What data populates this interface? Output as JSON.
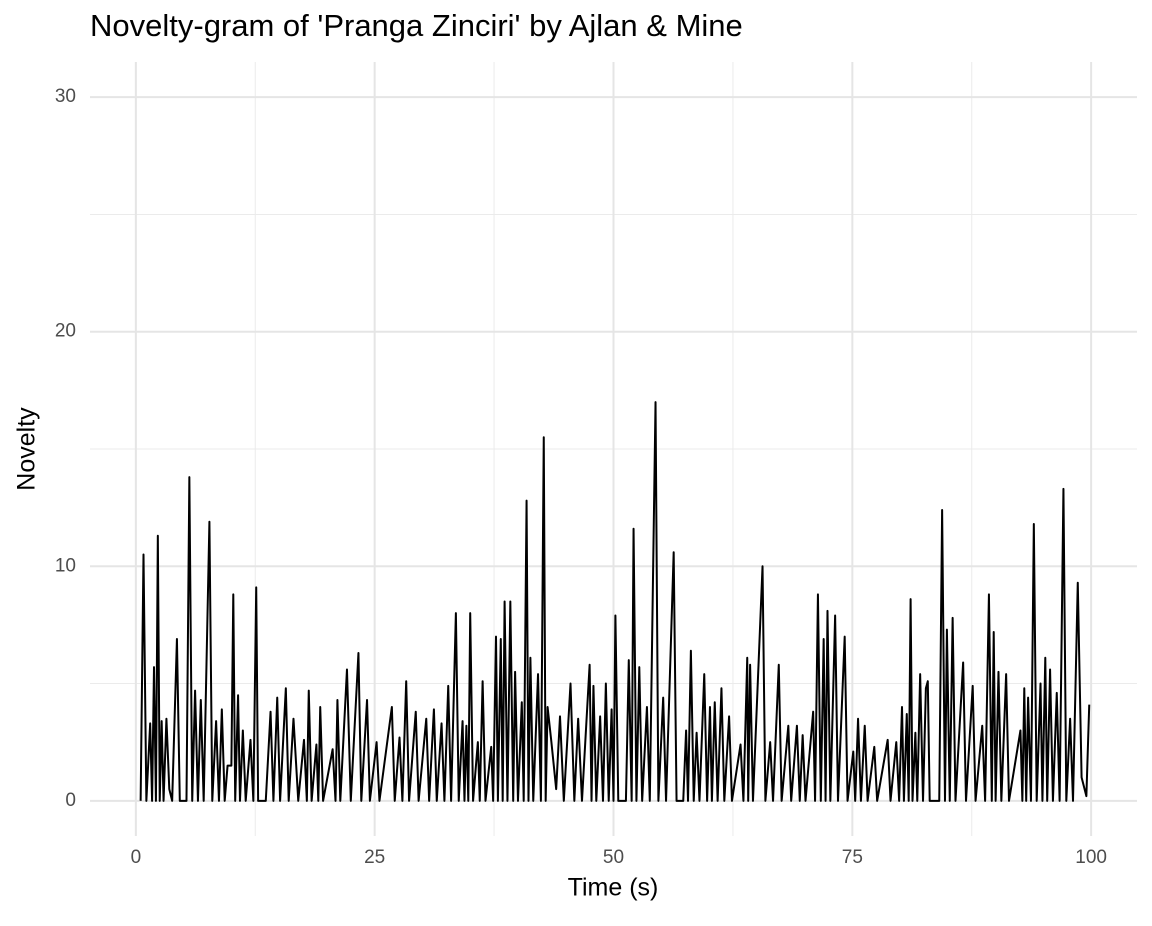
{
  "chart_data": {
    "type": "line",
    "title": "Novelty-gram of 'Pranga Zinciri' by Ajlan & Mine",
    "x_label": "Time (s)",
    "y_label": "Novelty",
    "xlim": [
      -4.8,
      104.8
    ],
    "ylim": [
      -1.5,
      31.5
    ],
    "xticks": [
      0,
      25,
      50,
      75,
      100
    ],
    "yticks": [
      0,
      10,
      20,
      30
    ],
    "x_minor_ticks": [
      12.5,
      37.5,
      62.5,
      87.5
    ],
    "y_minor_ticks": [
      5,
      15,
      25
    ],
    "grid": true,
    "series": [
      {
        "name": "Novelty",
        "color": "#000000",
        "x": [
          0.5,
          0.8,
          1.1,
          1.5,
          1.7,
          1.9,
          2.1,
          2.3,
          2.5,
          2.7,
          2.9,
          3.2,
          3.5,
          3.8,
          4.3,
          4.6,
          5.3,
          5.6,
          5.9,
          6.2,
          6.5,
          6.8,
          7.1,
          7.7,
          8.0,
          8.4,
          8.7,
          9.0,
          9.3,
          9.6,
          10.0,
          10.2,
          10.4,
          10.7,
          10.9,
          11.2,
          11.5,
          12.0,
          12.3,
          12.6,
          12.8,
          13.6,
          14.1,
          14.4,
          14.8,
          15.1,
          15.7,
          16.0,
          16.5,
          17.0,
          17.6,
          17.9,
          18.1,
          18.4,
          18.9,
          19.1,
          19.3,
          19.6,
          20.6,
          20.9,
          21.1,
          21.4,
          22.1,
          22.5,
          23.3,
          23.6,
          24.2,
          24.5,
          25.2,
          25.5,
          26.8,
          27.1,
          27.6,
          27.9,
          28.3,
          28.6,
          29.3,
          29.6,
          30.4,
          30.7,
          31.2,
          31.5,
          32.0,
          32.3,
          32.7,
          33.0,
          33.5,
          33.8,
          34.2,
          34.4,
          34.6,
          34.8,
          35.0,
          35.3,
          35.8,
          36.0,
          36.3,
          36.6,
          37.2,
          37.4,
          37.7,
          37.9,
          38.2,
          38.4,
          38.6,
          38.9,
          39.2,
          39.5,
          39.7,
          40.0,
          40.4,
          40.6,
          40.9,
          41.1,
          41.3,
          41.6,
          42.1,
          42.4,
          42.7,
          42.9,
          43.1,
          43.5,
          44.0,
          44.4,
          44.8,
          45.5,
          45.9,
          46.3,
          46.7,
          47.5,
          47.7,
          47.9,
          48.2,
          48.6,
          48.9,
          49.2,
          49.5,
          49.8,
          50.0,
          50.2,
          50.5,
          51.3,
          51.6,
          51.9,
          52.1,
          52.4,
          52.7,
          53.0,
          53.5,
          53.8,
          54.4,
          54.7,
          55.2,
          55.5,
          56.3,
          56.6,
          57.3,
          57.6,
          57.8,
          58.1,
          58.4,
          58.7,
          59.0,
          59.5,
          59.8,
          60.1,
          60.3,
          60.6,
          60.9,
          61.3,
          61.6,
          62.1,
          62.4,
          63.3,
          63.6,
          64.0,
          64.1,
          64.3,
          64.6,
          65.6,
          65.9,
          66.4,
          66.7,
          67.3,
          67.6,
          68.3,
          68.6,
          69.2,
          69.5,
          69.8,
          70.1,
          70.9,
          71.1,
          71.4,
          71.7,
          72.0,
          72.2,
          72.4,
          72.7,
          73.2,
          73.5,
          74.2,
          74.5,
          75.1,
          75.3,
          75.6,
          75.9,
          76.3,
          76.6,
          77.3,
          77.6,
          78.7,
          79.0,
          79.6,
          79.9,
          80.2,
          80.4,
          80.7,
          80.9,
          81.1,
          81.3,
          81.6,
          81.8,
          82.1,
          82.4,
          82.7,
          82.9,
          83.1,
          84.1,
          84.4,
          84.7,
          84.9,
          85.2,
          85.5,
          85.8,
          86.6,
          86.9,
          87.6,
          87.9,
          88.6,
          88.9,
          89.3,
          89.6,
          89.8,
          90.0,
          90.3,
          90.6,
          91.1,
          91.4,
          92.6,
          92.8,
          93.0,
          93.2,
          93.4,
          93.7,
          94.0,
          94.3,
          94.7,
          94.9,
          95.2,
          95.4,
          95.7,
          96.0,
          96.4,
          96.7,
          97.1,
          97.4,
          97.8,
          98.1,
          98.6,
          99.0,
          99.5,
          99.8
        ],
        "values": [
          0,
          10.5,
          0,
          3.3,
          0,
          5.7,
          0,
          11.3,
          0,
          3.4,
          0,
          3.5,
          0.5,
          0,
          6.9,
          0,
          0,
          13.8,
          0,
          4.7,
          0,
          4.3,
          0,
          11.9,
          0,
          3.4,
          0,
          3.9,
          0,
          1.5,
          1.5,
          8.8,
          0,
          4.5,
          0,
          3.0,
          0,
          2.6,
          0,
          9.1,
          0,
          0,
          3.8,
          0,
          4.4,
          0,
          4.8,
          0,
          3.5,
          0,
          2.6,
          0,
          4.7,
          0,
          2.4,
          0,
          4.0,
          0,
          2.2,
          0,
          4.3,
          0,
          5.6,
          0,
          6.3,
          0,
          4.3,
          0,
          2.5,
          0,
          4.0,
          0,
          2.7,
          0,
          5.1,
          0,
          3.8,
          0,
          3.5,
          0,
          3.9,
          0,
          3.3,
          0,
          4.9,
          0,
          8.0,
          0,
          3.4,
          0,
          3.2,
          0,
          8.0,
          0,
          2.5,
          0,
          5.1,
          0,
          2.3,
          0,
          7.0,
          0,
          6.9,
          0,
          8.5,
          0,
          8.5,
          0,
          5.5,
          0,
          4.2,
          0,
          12.8,
          0,
          6.1,
          0,
          5.4,
          0,
          15.5,
          0,
          4.0,
          2.5,
          0.5,
          3.6,
          0,
          5.0,
          0,
          3.5,
          0,
          5.8,
          0,
          4.9,
          0,
          3.6,
          0,
          5.0,
          0,
          3.9,
          0,
          7.9,
          0,
          0,
          6.0,
          0,
          11.6,
          0,
          5.7,
          0,
          4.0,
          0,
          17.0,
          0,
          4.4,
          0,
          10.6,
          0,
          0,
          3.0,
          0,
          6.4,
          0,
          2.9,
          0,
          5.4,
          0,
          4.0,
          0,
          4.2,
          0,
          4.8,
          0,
          3.6,
          0,
          2.4,
          0,
          6.1,
          0,
          5.8,
          0,
          10.0,
          0,
          2.5,
          0,
          5.8,
          0,
          3.2,
          0,
          3.2,
          0,
          2.8,
          0,
          3.8,
          0,
          8.8,
          0,
          6.9,
          0,
          8.1,
          0,
          7.9,
          0,
          7.0,
          0,
          2.1,
          0,
          3.5,
          0,
          3.2,
          0,
          2.3,
          0,
          2.6,
          0,
          2.5,
          0,
          4.0,
          0,
          3.7,
          0,
          8.6,
          0,
          2.9,
          0,
          5.4,
          0,
          4.8,
          5.1,
          0,
          0,
          12.4,
          0,
          7.3,
          0,
          7.8,
          0,
          5.9,
          0,
          4.9,
          0,
          3.2,
          0,
          8.8,
          0,
          7.2,
          0,
          5.5,
          0,
          5.4,
          0,
          3.0,
          0,
          4.8,
          0,
          4.4,
          0,
          11.8,
          0,
          5.0,
          0,
          6.1,
          0,
          5.6,
          0,
          4.6,
          0,
          13.3,
          0,
          3.5,
          0,
          9.3,
          1.0,
          0.2,
          4.1
        ]
      }
    ]
  }
}
